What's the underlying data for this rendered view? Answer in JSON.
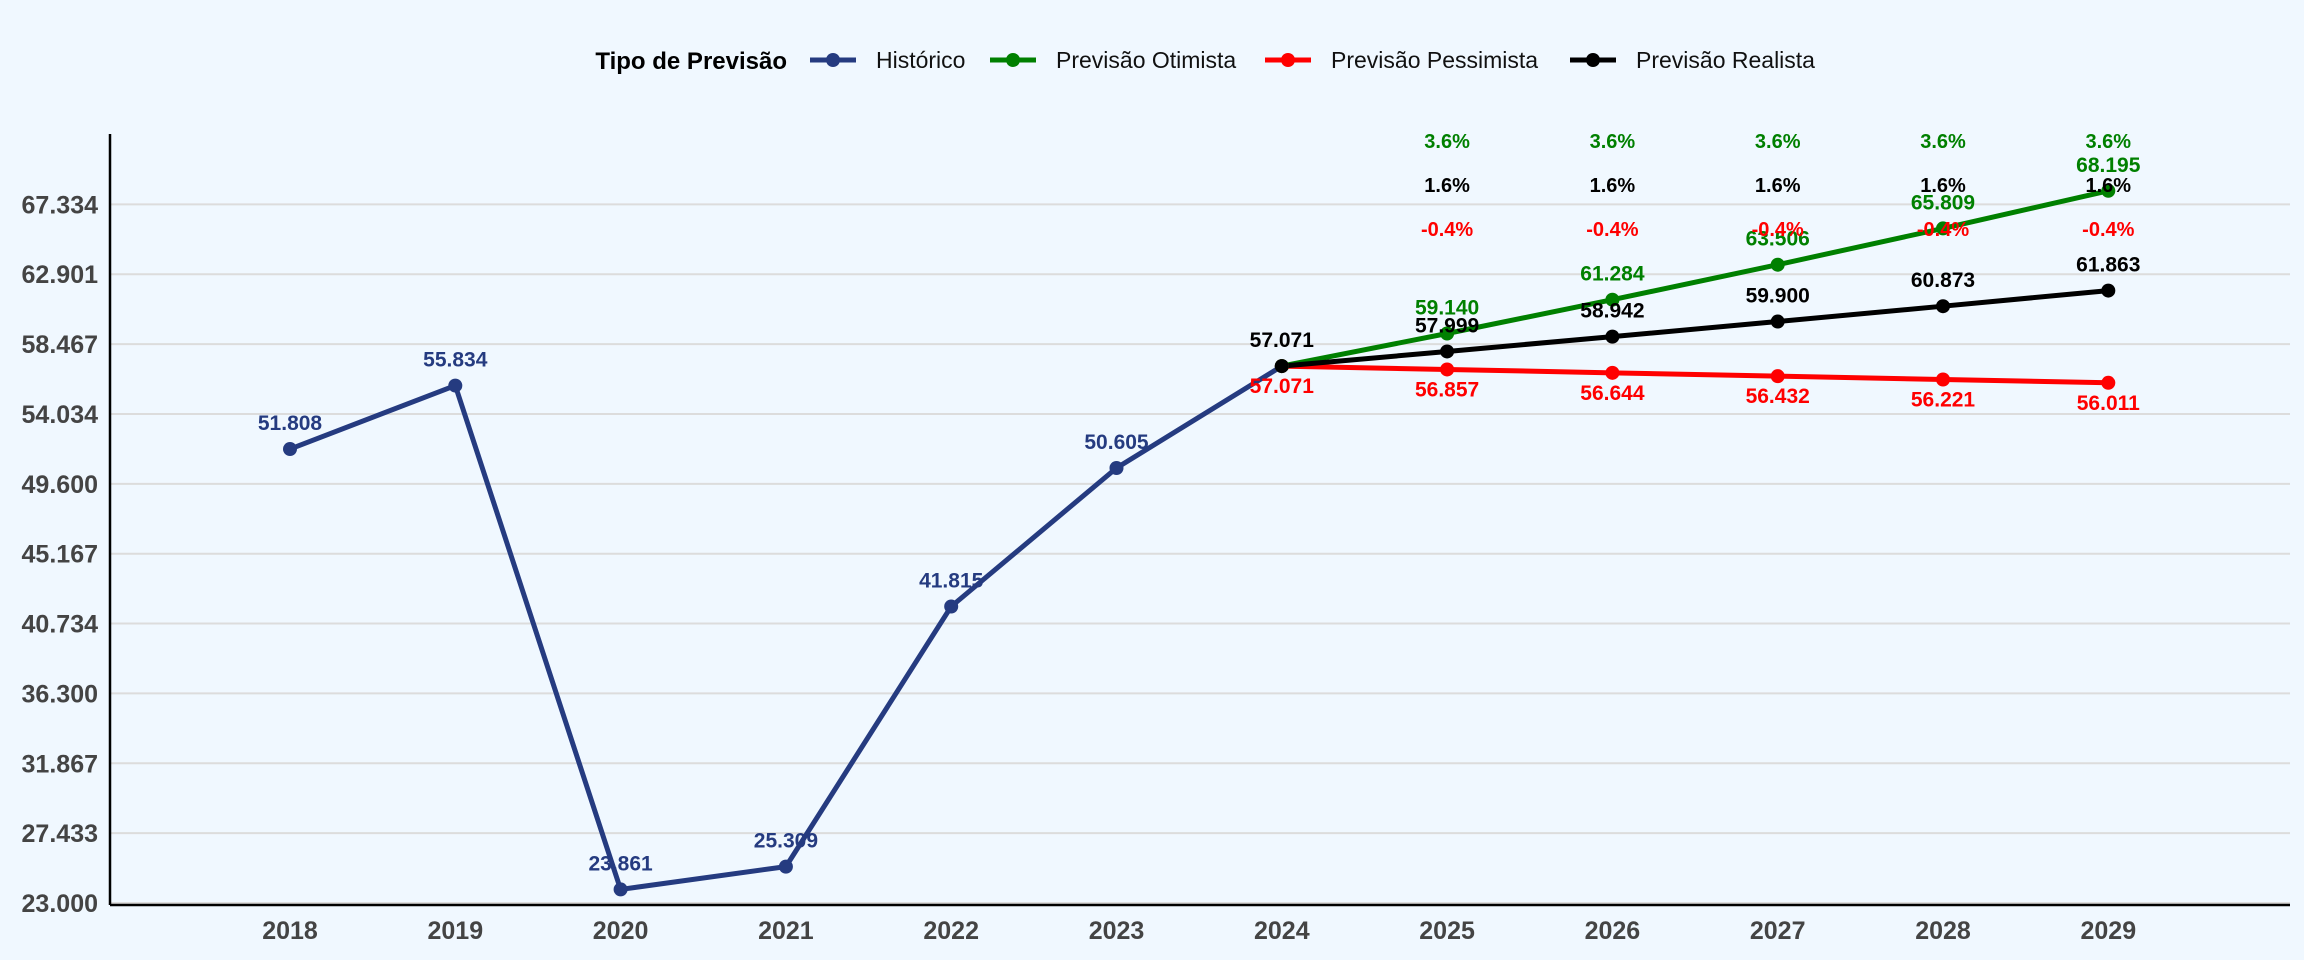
{
  "chart_data": {
    "type": "line",
    "x": [
      "2018",
      "2019",
      "2020",
      "2021",
      "2022",
      "2023",
      "2024",
      "2025",
      "2026",
      "2027",
      "2028",
      "2029"
    ],
    "ylim": [
      23.0,
      71.8
    ],
    "yticks": [
      "23.000",
      "27.433",
      "31.867",
      "36.300",
      "40.734",
      "45.167",
      "49.600",
      "54.034",
      "58.467",
      "62.901",
      "67.334"
    ],
    "ytick_values": [
      23.0,
      27.433,
      31.867,
      36.3,
      40.734,
      45.167,
      49.6,
      54.034,
      58.467,
      62.901,
      67.334
    ],
    "grid": "horizontal",
    "legend": {
      "title": "Tipo de Previsão",
      "position": "top-center"
    },
    "series": [
      {
        "name": "Histórico",
        "color": "#253b80",
        "x": [
          "2018",
          "2019",
          "2020",
          "2021",
          "2022",
          "2023",
          "2024"
        ],
        "values": [
          51.808,
          55.834,
          23.861,
          25.309,
          41.815,
          50.605,
          57.071
        ],
        "labels": [
          "51.808",
          "55.834",
          "23.861",
          "25.309",
          "41.815",
          "50.605",
          ""
        ]
      },
      {
        "name": "Previsão Otimista",
        "color": "#008000",
        "x": [
          "2024",
          "2025",
          "2026",
          "2027",
          "2028",
          "2029"
        ],
        "values": [
          57.071,
          59.14,
          61.284,
          63.506,
          65.809,
          68.195
        ],
        "labels": [
          "",
          "59.140",
          "61.284",
          "63.506",
          "65.809",
          "68.195"
        ]
      },
      {
        "name": "Previsão Pessimista",
        "color": "#ff0000",
        "x": [
          "2024",
          "2025",
          "2026",
          "2027",
          "2028",
          "2029"
        ],
        "values": [
          57.071,
          56.857,
          56.644,
          56.432,
          56.221,
          56.011
        ],
        "labels": [
          "57.071",
          "56.857",
          "56.644",
          "56.432",
          "56.221",
          "56.011"
        ]
      },
      {
        "name": "Previsão Realista",
        "color": "#000000",
        "x": [
          "2024",
          "2025",
          "2026",
          "2027",
          "2028",
          "2029"
        ],
        "values": [
          57.071,
          57.999,
          58.942,
          59.9,
          60.873,
          61.863
        ],
        "labels": [
          "57.071",
          "57.999",
          "58.942",
          "59.900",
          "60.873",
          "61.863"
        ]
      }
    ],
    "growth_rates": {
      "x": [
        "2025",
        "2026",
        "2027",
        "2028",
        "2029"
      ],
      "rows": [
        {
          "series": "Previsão Otimista",
          "color": "#008000",
          "label": "3.6%"
        },
        {
          "series": "Previsão Realista",
          "color": "#000000",
          "label": "1.6%"
        },
        {
          "series": "Previsão Pessimista",
          "color": "#ff0000",
          "label": "-0.4%"
        }
      ]
    }
  }
}
